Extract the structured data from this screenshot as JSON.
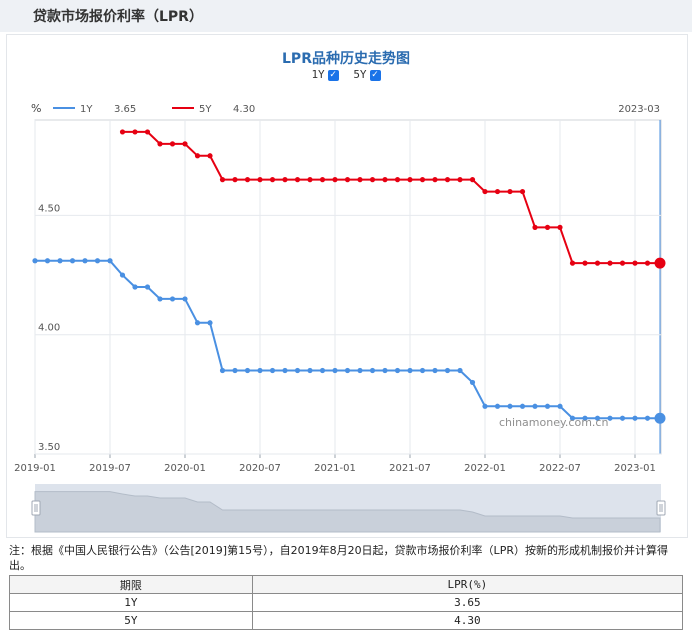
{
  "page_title": "贷款市场报价利率（LPR）",
  "legend": {
    "unit": "%",
    "date": "2023-03",
    "toggles": [
      {
        "label": "1Y",
        "checked": true
      },
      {
        "label": "5Y",
        "checked": true
      }
    ],
    "items": [
      {
        "label": "1Y",
        "value": "3.65",
        "color": "#4a90e2"
      },
      {
        "label": "5Y",
        "value": "4.30",
        "color": "#e60012"
      }
    ]
  },
  "watermark": "chinamoney.com.cn",
  "chart_data": {
    "type": "line",
    "title": "LPR品种历史走势图",
    "xlabel": "",
    "ylabel": "%",
    "ylim": [
      3.5,
      4.9
    ],
    "y_ticks": [
      "3.50",
      "4.00",
      "4.50"
    ],
    "x_ticks": [
      "2019-01",
      "2019-07",
      "2020-01",
      "2020-07",
      "2021-01",
      "2021-07",
      "2022-01",
      "2022-07",
      "2023-01"
    ],
    "grid": true,
    "x": [
      "2019-01",
      "2019-02",
      "2019-03",
      "2019-04",
      "2019-05",
      "2019-06",
      "2019-07",
      "2019-08",
      "2019-09",
      "2019-10",
      "2019-11",
      "2019-12",
      "2020-01",
      "2020-02",
      "2020-03",
      "2020-04",
      "2020-05",
      "2020-06",
      "2020-07",
      "2020-08",
      "2020-09",
      "2020-10",
      "2020-11",
      "2020-12",
      "2021-01",
      "2021-02",
      "2021-03",
      "2021-04",
      "2021-05",
      "2021-06",
      "2021-07",
      "2021-08",
      "2021-09",
      "2021-10",
      "2021-11",
      "2021-12",
      "2022-01",
      "2022-02",
      "2022-03",
      "2022-04",
      "2022-05",
      "2022-06",
      "2022-07",
      "2022-08",
      "2022-09",
      "2022-10",
      "2022-11",
      "2022-12",
      "2023-01",
      "2023-02",
      "2023-03"
    ],
    "series": [
      {
        "name": "1Y",
        "color": "#4a90e2",
        "values": [
          4.31,
          4.31,
          4.31,
          4.31,
          4.31,
          4.31,
          4.31,
          4.25,
          4.2,
          4.2,
          4.15,
          4.15,
          4.15,
          4.05,
          4.05,
          3.85,
          3.85,
          3.85,
          3.85,
          3.85,
          3.85,
          3.85,
          3.85,
          3.85,
          3.85,
          3.85,
          3.85,
          3.85,
          3.85,
          3.85,
          3.85,
          3.85,
          3.85,
          3.85,
          3.85,
          3.8,
          3.7,
          3.7,
          3.7,
          3.7,
          3.7,
          3.7,
          3.7,
          3.65,
          3.65,
          3.65,
          3.65,
          3.65,
          3.65,
          3.65,
          3.65
        ]
      },
      {
        "name": "5Y",
        "color": "#e60012",
        "values": [
          null,
          null,
          null,
          null,
          null,
          null,
          null,
          4.85,
          4.85,
          4.85,
          4.8,
          4.8,
          4.8,
          4.75,
          4.75,
          4.65,
          4.65,
          4.65,
          4.65,
          4.65,
          4.65,
          4.65,
          4.65,
          4.65,
          4.65,
          4.65,
          4.65,
          4.65,
          4.65,
          4.65,
          4.65,
          4.65,
          4.65,
          4.65,
          4.65,
          4.65,
          4.6,
          4.6,
          4.6,
          4.6,
          4.45,
          4.45,
          4.45,
          4.3,
          4.3,
          4.3,
          4.3,
          4.3,
          4.3,
          4.3,
          4.3
        ]
      }
    ]
  },
  "note": "注：根据《中国人民银行公告》（公告[2019]第15号），自2019年8月20日起，贷款市场报价利率（LPR）按新的形成机制报价并计算得出。",
  "table": {
    "headers": [
      "期限",
      "LPR(%)"
    ],
    "rows": [
      [
        "1Y",
        "3.65"
      ],
      [
        "5Y",
        "4.30"
      ]
    ]
  }
}
